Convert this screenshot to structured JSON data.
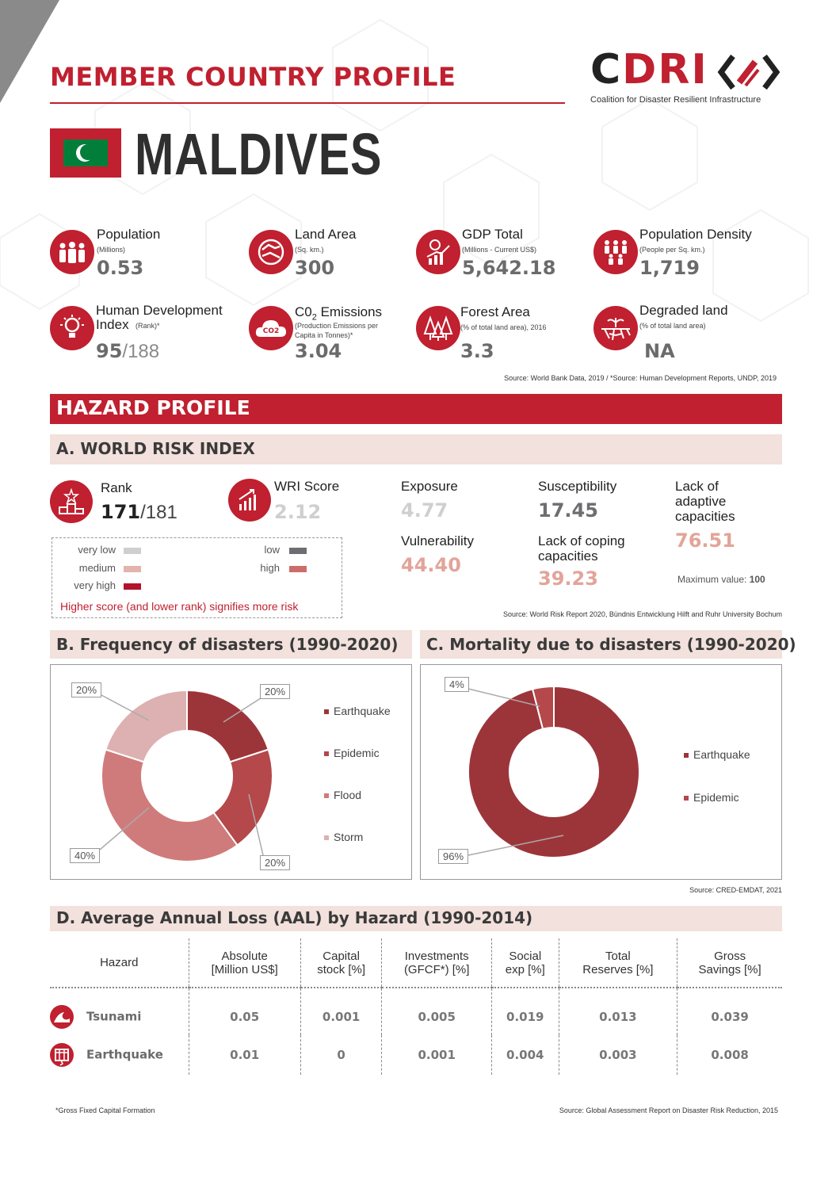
{
  "header": {
    "title": "MEMBER COUNTRY PROFILE",
    "logo_c": "C",
    "logo_dri": "DRI",
    "logo_subtitle": "Coalition for Disaster Resilient Infrastructure",
    "country": "MALDIVES"
  },
  "stats": {
    "population": {
      "label": "Population",
      "unit": "(Millions)",
      "value": "0.53"
    },
    "land_area": {
      "label": "Land Area",
      "unit": "(Sq. km.)",
      "value": "300"
    },
    "gdp": {
      "label": "GDP Total",
      "unit": "(Millions - Current US$)",
      "value": "5,642.18"
    },
    "density": {
      "label": "Population Density",
      "unit": "(People per Sq. km.)",
      "value": "1,719"
    },
    "hdi": {
      "label_line1": "Human Development",
      "label_line2": "Index",
      "unit": "(Rank)*",
      "value": "95",
      "value_total": "/188"
    },
    "co2": {
      "label": "C0",
      "label_sub": "2",
      "label_rest": " Emissions",
      "unit_line1": "(Production Emissions per",
      "unit_line2": "Capita in Tonnes)*",
      "value": "3.04",
      "icon_text": "CO2"
    },
    "forest": {
      "label": "Forest Area",
      "unit": "(% of total land area), 2016",
      "value": "3.3"
    },
    "degraded": {
      "label": "Degraded land",
      "unit": "(% of total land area)",
      "value": "NA"
    },
    "source": "Source: World Bank Data, 2019 / *Source: Human Development Reports, UNDP, 2019"
  },
  "hazard": {
    "title": "HAZARD PROFILE",
    "wri": {
      "title": "A. WORLD RISK INDEX",
      "rank_label": "Rank",
      "rank_value": "171",
      "rank_total": "/181",
      "score_label": "WRI Score",
      "score_value": "2.12",
      "exposure_label": "Exposure",
      "exposure_value": "4.77",
      "susceptibility_label": "Susceptibility",
      "susceptibility_value": "17.45",
      "adaptive_line1": "Lack of",
      "adaptive_line2": "adaptive",
      "adaptive_line3": "capacities",
      "adaptive_value": "76.51",
      "vulnerability_label": "Vulnerability",
      "vulnerability_value": "44.40",
      "coping_line1": "Lack of coping",
      "coping_line2": "capacities",
      "coping_value": "39.23",
      "max_label": "Maximum value: ",
      "max_value": "100",
      "legend": {
        "very_low": "very low",
        "low": "low",
        "medium": "medium",
        "high": "high",
        "very_high": "very high",
        "note": "Higher score (and lower rank) signifies more risk"
      },
      "colors": {
        "very_low": "#cfcfcf",
        "low": "#6e6e72",
        "medium": "#e2b4ad",
        "high": "#cd6d6a",
        "very_high": "#b3122d"
      },
      "source": "Source: World Risk Report 2020, Bündnis Entwicklung Hilft and Ruhr University Bochum"
    },
    "frequency_title": "B.  Frequency of disasters (1990-2020)",
    "mortality_title": "C.  Mortality due to disasters (1990-2020)",
    "charts_source": "Source: CRED-EMDAT, 2021"
  },
  "chart_data": [
    {
      "type": "pie",
      "title": "B.  Frequency of disasters (1990-2020)",
      "categories": [
        "Earthquake",
        "Epidemic",
        "Flood",
        "Storm"
      ],
      "values": [
        20,
        20,
        40,
        20
      ],
      "labels": [
        "20%",
        "20%",
        "40%",
        "20%"
      ],
      "colors": [
        "#9c353a",
        "#b5484a",
        "#cf7b7b",
        "#ddb1b1"
      ],
      "legend": "right"
    },
    {
      "type": "pie",
      "title": "C.  Mortality due to disasters (1990-2020)",
      "categories": [
        "Earthquake",
        "Epidemic"
      ],
      "values": [
        96,
        4
      ],
      "labels": [
        "96%",
        "4%"
      ],
      "colors": [
        "#9c353a",
        "#b5484a"
      ],
      "legend": "right"
    }
  ],
  "aal": {
    "title": "D.  Average Annual Loss (AAL) by Hazard (1990-2014)",
    "headers": [
      [
        "Hazard",
        ""
      ],
      [
        "Absolute",
        "[Million US$]"
      ],
      [
        "Capital",
        "stock [%]"
      ],
      [
        "Investments",
        "(GFCF*) [%]"
      ],
      [
        "Social",
        "exp [%]"
      ],
      [
        "Total",
        "Reserves [%]"
      ],
      [
        "Gross",
        "Savings [%]"
      ]
    ],
    "rows": [
      [
        "Tsunami",
        "0.05",
        "0.001",
        "0.005",
        "0.019",
        "0.013",
        "0.039"
      ],
      [
        "Earthquake",
        "0.01",
        "0",
        "0.001",
        "0.004",
        "0.003",
        "0.008"
      ]
    ],
    "footnote": "*Gross Fixed Capital Formation",
    "source": "Source: Global Assessment Report on Disaster Risk Reduction, 2015"
  }
}
